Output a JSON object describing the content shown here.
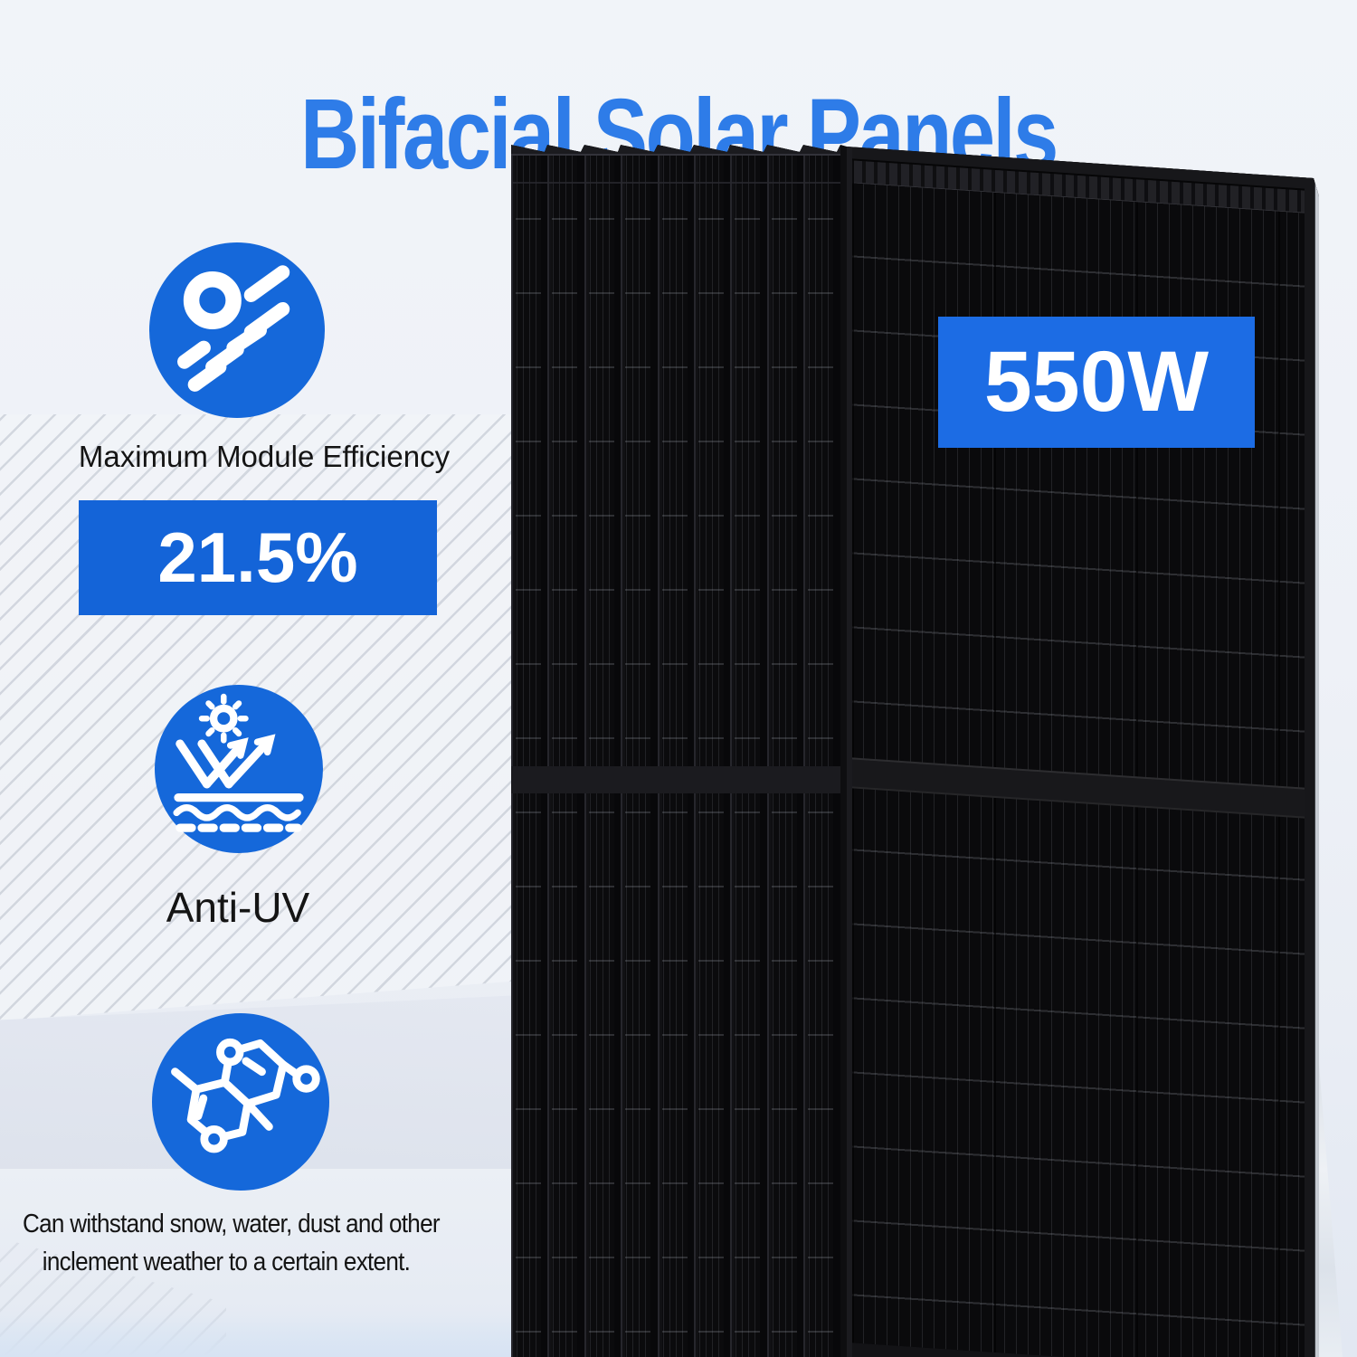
{
  "title": "Bifacial Solar Panels",
  "features": [
    {
      "icon": "sun-speed-icon",
      "label": "Maximum Module Efficiency",
      "badge": "21.5%"
    },
    {
      "icon": "anti-uv-icon",
      "label": "Anti-UV"
    },
    {
      "icon": "molecule-icon",
      "label_line1": "Can withstand snow, water, dust and other",
      "label_line2": "inclement weather to a certain extent."
    }
  ],
  "panel": {
    "wattage_label": "550W",
    "back_panel_count": 9
  },
  "colors": {
    "title_blue": "#2e7ce8",
    "icon_blue": "#1568da",
    "badge_blue": "#1464d8",
    "wattage_blue": "#1c6ce4",
    "text_dark": "#141414",
    "background": "#eef1f7"
  }
}
